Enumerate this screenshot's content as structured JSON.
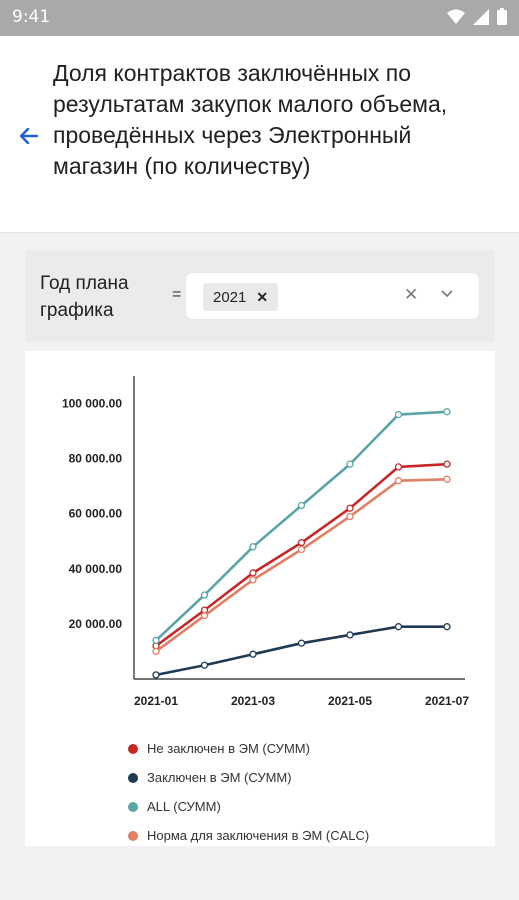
{
  "status_bar": {
    "time": "9:41",
    "icons": [
      "wifi-icon",
      "signal-icon",
      "battery-icon"
    ]
  },
  "header": {
    "back_icon": "arrow-left-icon",
    "title": "Доля контрактов заключённых по результатам закупок малого объема, проведённых через Электронный магазин (по количеству)"
  },
  "filter": {
    "label": "Год плана графика",
    "operator": "=",
    "selected_value": "2021",
    "chip_remove": "✕",
    "clear": "✕",
    "dropdown": "⌄"
  },
  "chart_data": {
    "type": "line",
    "x": [
      "2021-01",
      "2021-02",
      "2021-03",
      "2021-04",
      "2021-05",
      "2021-06",
      "2021-07"
    ],
    "x_tick_labels": [
      "2021-01",
      "2021-03",
      "2021-05",
      "2021-07"
    ],
    "y_tick_labels": [
      "20 000.00",
      "40 000.00",
      "60 000.00",
      "80 000.00",
      "100 000.00"
    ],
    "y_ticks": [
      20000,
      40000,
      60000,
      80000,
      100000
    ],
    "ylim": [
      0,
      110000
    ],
    "grid": false,
    "legend_position": "bottom",
    "series": [
      {
        "name": "Не заключен в ЭМ (СУММ)",
        "color": "#c62828",
        "values": [
          12000,
          25000,
          38500,
          49500,
          62000,
          77000,
          78000
        ]
      },
      {
        "name": "Заключен в ЭМ (СУММ)",
        "color": "#1f3a52",
        "values": [
          1500,
          5000,
          9000,
          13000,
          16000,
          19000,
          19000
        ]
      },
      {
        "name": "ALL (СУММ)",
        "color": "#5aa4a8",
        "values": [
          14000,
          30500,
          48000,
          63000,
          78000,
          96000,
          97000
        ]
      },
      {
        "name": "Норма для заключения в ЭМ (CALC)",
        "color": "#e07f63",
        "values": [
          10000,
          23000,
          36000,
          47000,
          59000,
          72000,
          72500
        ]
      }
    ]
  }
}
